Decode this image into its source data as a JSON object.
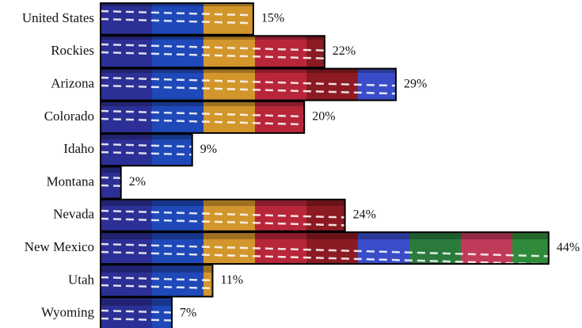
{
  "chart_data": {
    "type": "bar",
    "orientation": "horizontal",
    "categories": [
      "United States",
      "Rockies",
      "Arizona",
      "Colorado",
      "Idaho",
      "Montana",
      "Nevada",
      "New Mexico",
      "Utah",
      "Wyoming"
    ],
    "values": [
      15,
      22,
      29,
      20,
      9,
      2,
      24,
      44,
      11,
      7
    ],
    "value_labels": [
      "15%",
      "22%",
      "29%",
      "20%",
      "9%",
      "2%",
      "24%",
      "44%",
      "11%",
      "7%"
    ]
  }
}
